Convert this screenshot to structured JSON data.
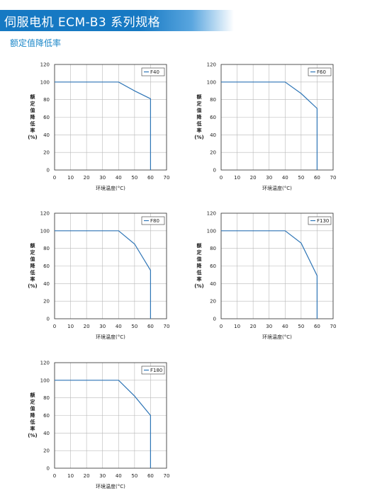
{
  "page": {
    "title": "伺服电机 ECM-B3 系列规格",
    "subtitle": "额定值降低率",
    "accent_color": "#1679c3",
    "line_color": "#2e75b6"
  },
  "chart_data": [
    {
      "type": "line",
      "x": [
        0,
        40,
        50,
        60,
        60
      ],
      "series": [
        {
          "name": "F40",
          "values": [
            100,
            100,
            90,
            81,
            0
          ]
        }
      ],
      "xlabel": "环境温度(°C)",
      "ylabel": [
        "额",
        "定",
        "值",
        "降",
        "低",
        "率",
        "(%)"
      ],
      "xlim": [
        0,
        70
      ],
      "ylim": [
        0,
        120
      ],
      "xticks": [
        0,
        10,
        20,
        30,
        40,
        50,
        60,
        70
      ],
      "yticks": [
        0,
        20,
        40,
        60,
        80,
        100,
        120
      ],
      "grid": true,
      "legend": "top-right"
    },
    {
      "type": "line",
      "x": [
        0,
        40,
        50,
        60,
        60
      ],
      "series": [
        {
          "name": "F60",
          "values": [
            100,
            100,
            87,
            70,
            0
          ]
        }
      ],
      "xlabel": "环境温度(°C)",
      "ylabel": [
        "额",
        "定",
        "值",
        "降",
        "低",
        "率",
        "(%)"
      ],
      "xlim": [
        0,
        70
      ],
      "ylim": [
        0,
        120
      ],
      "xticks": [
        0,
        10,
        20,
        30,
        40,
        50,
        60,
        70
      ],
      "yticks": [
        0,
        20,
        40,
        60,
        80,
        100,
        120
      ],
      "grid": true,
      "legend": "top-right"
    },
    {
      "type": "line",
      "x": [
        0,
        40,
        50,
        60,
        60
      ],
      "series": [
        {
          "name": "F80",
          "values": [
            100,
            100,
            85,
            55,
            0
          ]
        }
      ],
      "xlabel": "环境温度(°C)",
      "ylabel": [
        "额",
        "定",
        "值",
        "降",
        "低",
        "率",
        "(%)"
      ],
      "xlim": [
        0,
        70
      ],
      "ylim": [
        0,
        120
      ],
      "xticks": [
        0,
        10,
        20,
        30,
        40,
        50,
        60,
        70
      ],
      "yticks": [
        0,
        20,
        40,
        60,
        80,
        100,
        120
      ],
      "grid": true,
      "legend": "top-right"
    },
    {
      "type": "line",
      "x": [
        0,
        40,
        50,
        60,
        60
      ],
      "series": [
        {
          "name": "F130",
          "values": [
            100,
            100,
            86,
            49,
            0
          ]
        }
      ],
      "xlabel": "环境温度(°C)",
      "ylabel": [
        "额",
        "定",
        "值",
        "降",
        "低",
        "率",
        "(%)"
      ],
      "xlim": [
        0,
        70
      ],
      "ylim": [
        0,
        120
      ],
      "xticks": [
        0,
        10,
        20,
        30,
        40,
        50,
        60,
        70
      ],
      "yticks": [
        0,
        20,
        40,
        60,
        80,
        100,
        120
      ],
      "grid": true,
      "legend": "top-right"
    },
    {
      "type": "line",
      "x": [
        0,
        40,
        50,
        60,
        60
      ],
      "series": [
        {
          "name": "F180",
          "values": [
            100,
            100,
            82,
            60,
            0
          ]
        }
      ],
      "xlabel": "环境温度(°C)",
      "ylabel": [
        "额",
        "定",
        "值",
        "降",
        "低",
        "率",
        "(%)"
      ],
      "xlim": [
        0,
        70
      ],
      "ylim": [
        0,
        120
      ],
      "xticks": [
        0,
        10,
        20,
        30,
        40,
        50,
        60,
        70
      ],
      "yticks": [
        0,
        20,
        40,
        60,
        80,
        100,
        120
      ],
      "grid": true,
      "legend": "top-right"
    }
  ]
}
